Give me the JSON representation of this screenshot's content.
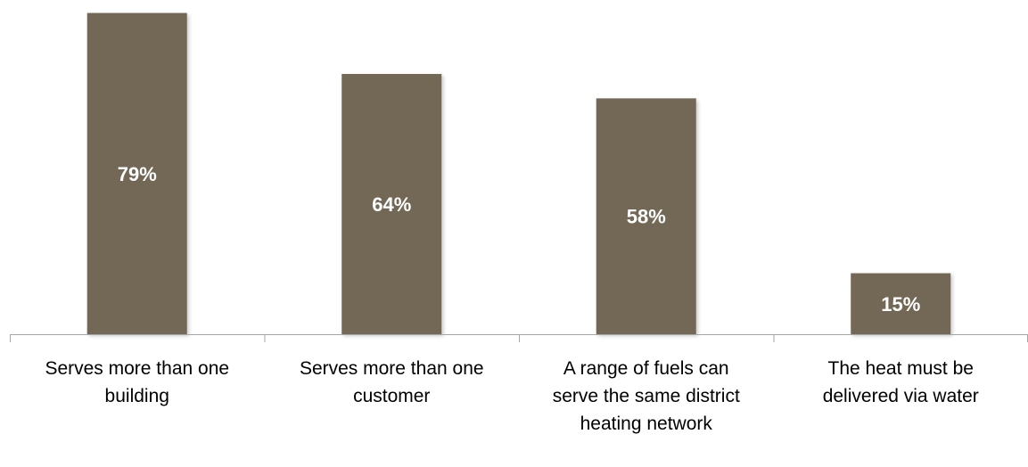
{
  "chart_data": {
    "type": "bar",
    "categories": [
      [
        "Serves more than one",
        "building"
      ],
      [
        "Serves more than one",
        "customer"
      ],
      [
        "A range of fuels can",
        "serve the same district",
        "heating network"
      ],
      [
        "The heat must be",
        "delivered via water"
      ]
    ],
    "values": [
      79,
      64,
      58,
      15
    ],
    "data_labels": [
      "79%",
      "64%",
      "58%",
      "15%"
    ],
    "value_unit": "%",
    "ylim": [
      0,
      80
    ],
    "grid": false,
    "legend": "none",
    "colors": {
      "bar": "#736757",
      "bar_label": "#ffffff",
      "axis": "#a6a6a6"
    }
  }
}
